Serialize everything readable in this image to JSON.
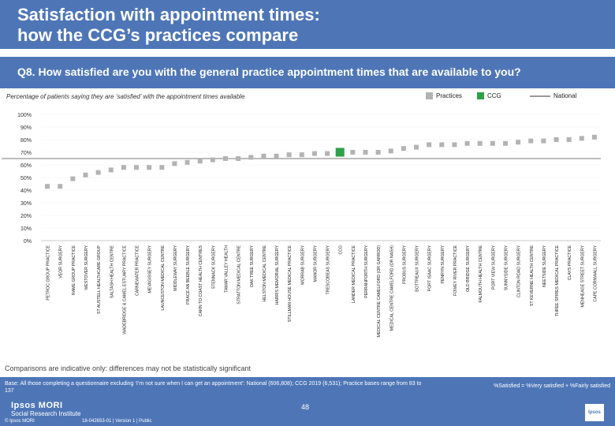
{
  "title": "Satisfaction with appointment times:\nhow the CCG’s practices compare",
  "question": "Q8. How satisfied are you with the general practice appointment times that are available to you?",
  "subtitle": "Percentage of patients saying they are ‘satisfied’ with the appointment times available",
  "legend": {
    "practices": "Practices",
    "ccg": "CCG",
    "national": "National"
  },
  "colors": {
    "header": "#4e76b7",
    "practice": "#b3b3b3",
    "ccg": "#2ea04a",
    "national": "#a6a6a6"
  },
  "chart_data": {
    "type": "scatter",
    "title": "Percentage of patients saying they are ‘satisfied’ with the appointment times available",
    "xlabel": "",
    "ylabel": "",
    "ylim": [
      0,
      100
    ],
    "yticks": [
      "0%",
      "10%",
      "20%",
      "30%",
      "40%",
      "50%",
      "60%",
      "70%",
      "80%",
      "90%",
      "100%"
    ],
    "national": 65,
    "ccg_label": "CCG",
    "categories": [
      "PETROC GROUP PRACTICE",
      "VEOR SURGERY",
      "RAME GROUP PRACTICE",
      "WESTOVER SURGERY",
      "ST AUSTELL HEALTHCARE GROUP",
      "SALTASH HEALTH CENTRE",
      "WADEBRIDGE & CAMEL ESTUARY PRACTICE",
      "CARNEWATER PRACTICE",
      "MEVAGISSEY SURGERY",
      "LAUNCESTON MEDICAL CENTRE",
      "MIDDLEWAY SURGERY",
      "PRACE AN BEEBLE SURGERY",
      "CARN TO COAST HEALTH CENTRES",
      "STENNACK SURGERY",
      "TAMAR VALLEY HEALTH",
      "STRATTON MEDICAL CENTRE",
      "OAK TREE SURGERY",
      "HELSTON MEDICAL CENTRE",
      "HARRIS MEMORIAL SURGERY",
      "STILLMAN HOUSE MEDICAL PRACTICE",
      "MORRAB SURGERY",
      "MANOR SURGERY",
      "TRESCOBEAS SURGERY",
      "CCG",
      "LANDER MEDICAL PRACTICE",
      "PERRANPORTH SURGERY",
      "MEDICAL CENTRE CAMELFORD (OR GARROD)",
      "MEDICAL CENTRE CAMELFORD (OR NASH)",
      "PROBUS SURGERY",
      "BOTTREAUX SURGERY",
      "PORT ISAAC SURGERY",
      "PENRYN SURGERY",
      "FOWEY RIVER PRACTICE",
      "OLD BRIDGE SURGERY",
      "FALMOUTH HEALTH CENTRE",
      "PORT VIEW SURGERY",
      "SUNNYSIDE SURGERY",
      "CLINTON ROAD SURGERY",
      "ST KEVERNE HEALTH CENTRE",
      "NEETSIDE SURGERY",
      "THREE SPIRES MEDICAL PRACTICE",
      "CLAYS PRACTICE",
      "MENHEAGE STREET SURGERY",
      "CAPE CORNWALL SURGERY"
    ],
    "values": [
      43,
      43,
      49,
      52,
      54,
      56,
      58,
      58,
      58,
      58,
      61,
      62,
      63,
      64,
      65,
      65,
      66,
      67,
      67,
      68,
      68,
      69,
      69,
      70,
      70,
      70,
      70,
      71,
      73,
      74,
      76,
      76,
      76,
      77,
      77,
      77,
      77,
      78,
      79,
      79,
      80,
      80,
      81,
      82
    ]
  },
  "note": "Comparisons are indicative only: differences may not be statistically significant",
  "base": "Base: All those completing a questionnaire excluding ‘I’m not sure when I can get an appointment’: National (606,808); CCG 2019 (6,531); Practice bases range from 83 to 137",
  "formula": "%Satisfied = %Very satisfied + %Fairly satisfied",
  "logo_line1": "Ipsos MORI",
  "logo_line2": "Social Research Institute",
  "copyright": "© Ipsos MORI",
  "reference": "18-042653-01 | Version 1 | Public",
  "page_number": "48",
  "ipsos_badge": "Ipsos"
}
